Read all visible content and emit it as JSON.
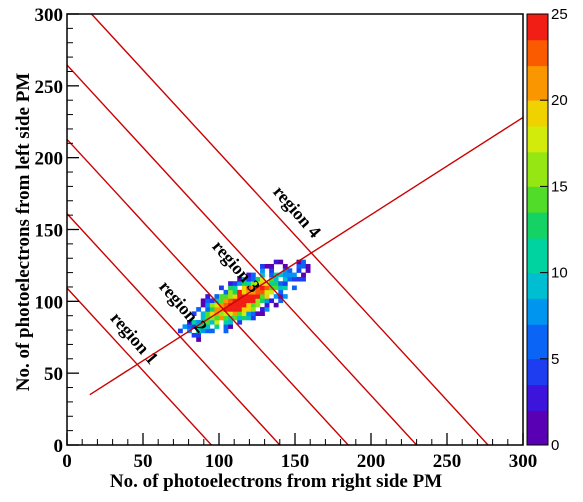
{
  "chart_data": {
    "type": "heatmap",
    "title": "",
    "xlabel": "No. of photoelectrons from right side PM",
    "ylabel": "No. of photoelectrons from left side PM",
    "xlim": [
      0,
      300
    ],
    "ylim": [
      0,
      300
    ],
    "x_ticks": [
      0,
      50,
      100,
      150,
      200,
      250,
      300
    ],
    "y_ticks": [
      0,
      50,
      100,
      150,
      200,
      250,
      300
    ],
    "colorbar": {
      "zlim": [
        0,
        25
      ],
      "ticks": [
        0,
        5,
        10,
        15,
        20,
        25
      ]
    },
    "grid": false,
    "cluster_2d": {
      "center": [
        115,
        100
      ],
      "major_axis_slope": 0.6,
      "x_range": [
        70,
        165
      ],
      "y_range": [
        60,
        145
      ],
      "peak_counts": 22
    },
    "regression_line": {
      "points": [
        [
          15,
          35
        ],
        [
          300,
          228
        ]
      ]
    },
    "cut_lines": [
      {
        "label": "region 1",
        "x_at_y0": 95,
        "slope": -1.15
      },
      {
        "label": "region 2",
        "x_at_y0": 140,
        "slope": -1.15
      },
      {
        "label": "region 3",
        "x_at_y0": 185,
        "slope": -1.15
      },
      {
        "label": "region 4",
        "x_at_y0": 230,
        "slope": -1.15
      },
      {
        "label": "",
        "x_at_y0": 277,
        "slope": -1.15
      }
    ],
    "colors": {
      "line": "#cc0000",
      "palette": [
        "#5a00b4",
        "#3c14dc",
        "#1e3cf0",
        "#0a64f5",
        "#0096f0",
        "#00bed2",
        "#00d2a0",
        "#14d264",
        "#50dc28",
        "#96e614",
        "#d2eb0a",
        "#f0d200",
        "#fa9600",
        "#fa5a00",
        "#f01e14"
      ]
    }
  }
}
